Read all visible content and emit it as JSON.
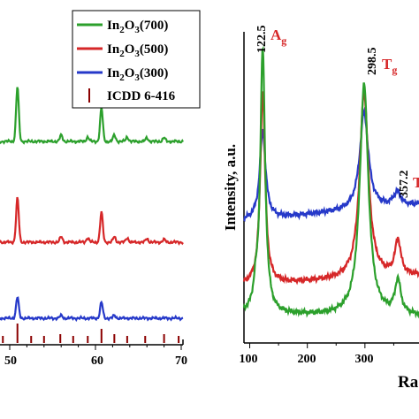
{
  "chart_data": [
    {
      "type": "line",
      "title": "",
      "xlabel": "",
      "ylabel": "",
      "xlim": [
        40,
        70
      ],
      "x_ticks": [
        "50",
        "60",
        "70"
      ],
      "legend_placement": "top-right",
      "series": [
        {
          "name_parts": {
            "a": "In",
            "b": "2",
            "c": "O",
            "d": "3",
            "e": "(700)"
          },
          "color": "#2ca02c",
          "peaks": [
            {
              "x": 50.9,
              "h": 62
            },
            {
              "x": 56.0,
              "h": 7
            },
            {
              "x": 59.1,
              "h": 5
            },
            {
              "x": 60.7,
              "h": 38
            },
            {
              "x": 62.2,
              "h": 7
            },
            {
              "x": 63.7,
              "h": 5
            },
            {
              "x": 66.0,
              "h": 4
            },
            {
              "x": 68.0,
              "h": 4
            }
          ]
        },
        {
          "name_parts": {
            "a": "In",
            "b": "2",
            "c": "O",
            "d": "3",
            "e": "(500)"
          },
          "color": "#d62728",
          "peaks": [
            {
              "x": 50.9,
              "h": 50
            },
            {
              "x": 56.0,
              "h": 6
            },
            {
              "x": 59.1,
              "h": 5
            },
            {
              "x": 60.7,
              "h": 34
            },
            {
              "x": 62.2,
              "h": 6
            },
            {
              "x": 63.7,
              "h": 5
            },
            {
              "x": 66.0,
              "h": 4
            },
            {
              "x": 68.0,
              "h": 3
            }
          ]
        },
        {
          "name_parts": {
            "a": "In",
            "b": "2",
            "c": "O",
            "d": "3",
            "e": "(300)"
          },
          "color": "#2639c9",
          "peaks": [
            {
              "x": 50.9,
              "h": 24
            },
            {
              "x": 60.7,
              "h": 18
            },
            {
              "x": 56.0,
              "h": 3
            },
            {
              "x": 62.2,
              "h": 3
            }
          ]
        },
        {
          "name": "ICDD 6-416",
          "color": "#8b0000",
          "kind": "sticks",
          "sticks": [
            {
              "x": 45.7,
              "h": 8
            },
            {
              "x": 46.5,
              "h": 5
            },
            {
              "x": 47.8,
              "h": 8
            },
            {
              "x": 49.2,
              "h": 8
            },
            {
              "x": 50.9,
              "h": 22
            },
            {
              "x": 52.5,
              "h": 8
            },
            {
              "x": 54.0,
              "h": 8
            },
            {
              "x": 55.9,
              "h": 10
            },
            {
              "x": 57.4,
              "h": 8
            },
            {
              "x": 59.1,
              "h": 8
            },
            {
              "x": 60.7,
              "h": 16
            },
            {
              "x": 62.2,
              "h": 10
            },
            {
              "x": 63.7,
              "h": 8
            },
            {
              "x": 65.8,
              "h": 8
            },
            {
              "x": 68.0,
              "h": 10
            },
            {
              "x": 69.7,
              "h": 8
            }
          ]
        }
      ]
    },
    {
      "type": "line",
      "title": "",
      "xlabel": "Ra",
      "ylabel": "Intensity, a.u.",
      "xlim": [
        90,
        400
      ],
      "x_ticks": [
        "100",
        "200",
        "300"
      ],
      "annotations": {
        "p1": "122.5",
        "p2": "298.5",
        "p3": "357.2",
        "ag_main": "A",
        "ag_sub": "g",
        "tg_main": "T",
        "tg_sub": "g",
        "cut_t": "T"
      },
      "series": [
        {
          "color": "#2639c9",
          "base": 250,
          "end": 231,
          "peaks": [
            {
              "x": 122.5,
              "h": 100,
              "w": 6
            },
            {
              "x": 298.5,
              "h": 110,
              "w": 9
            },
            {
              "x": 357.2,
              "h": 14,
              "w": 6
            },
            {
              "x": 350,
              "h": 4,
              "w": 5
            }
          ]
        },
        {
          "color": "#d62728",
          "base": 323,
          "end": 312,
          "peaks": [
            {
              "x": 122.5,
              "h": 220,
              "w": 5
            },
            {
              "x": 298.5,
              "h": 212,
              "w": 9
            },
            {
              "x": 357.2,
              "h": 40,
              "w": 6
            }
          ]
        },
        {
          "color": "#2ca02c",
          "base": 356,
          "end": 358,
          "peaks": [
            {
              "x": 122.5,
              "h": 300,
              "w": 5
            },
            {
              "x": 298.5,
              "h": 262,
              "w": 9
            },
            {
              "x": 357.2,
              "h": 38,
              "w": 6
            },
            {
              "x": 110,
              "h": 20,
              "w": 4
            }
          ]
        }
      ]
    }
  ]
}
